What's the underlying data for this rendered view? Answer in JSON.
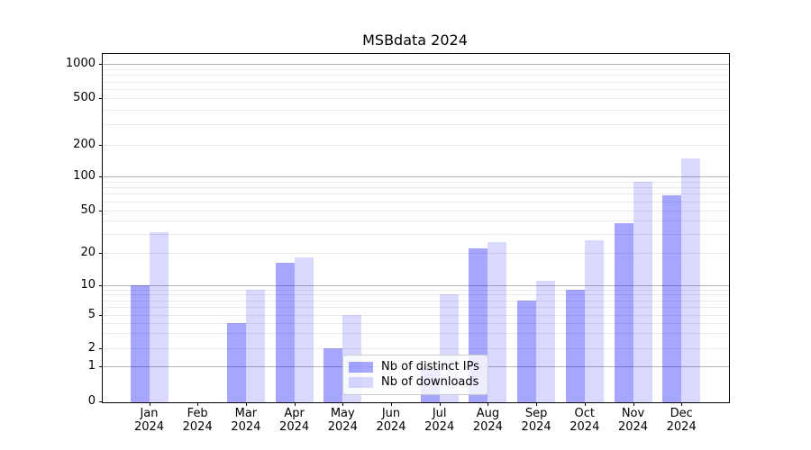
{
  "title": "MSBdata 2024",
  "colors": {
    "bar_base": "#0000ff",
    "ips_bar_rendered": "#a6a6ff",
    "downloads_bar_rendered": "#d9d9ff",
    "major_gridline": "#b4b4b4",
    "minor_gridline": "#eaeaea",
    "axis": "#000000",
    "legend_border": "#cccccc"
  },
  "legend": {
    "items": [
      {
        "label": "Nb of distinct IPs"
      },
      {
        "label": "Nb of downloads"
      }
    ]
  },
  "chart_data": {
    "type": "bar",
    "title": "MSBdata 2024",
    "categories": [
      "Jan 2024",
      "Feb 2024",
      "Mar 2024",
      "Apr 2024",
      "May 2024",
      "Jun 2024",
      "Jul 2024",
      "Aug 2024",
      "Sep 2024",
      "Oct 2024",
      "Nov 2024",
      "Dec 2024"
    ],
    "x_labels": [
      {
        "line1": "Jan",
        "line2": "2024"
      },
      {
        "line1": "Feb",
        "line2": "2024"
      },
      {
        "line1": "Mar",
        "line2": "2024"
      },
      {
        "line1": "Apr",
        "line2": "2024"
      },
      {
        "line1": "May",
        "line2": "2024"
      },
      {
        "line1": "Jun",
        "line2": "2024"
      },
      {
        "line1": "Jul",
        "line2": "2024"
      },
      {
        "line1": "Aug",
        "line2": "2024"
      },
      {
        "line1": "Sep",
        "line2": "2024"
      },
      {
        "line1": "Oct",
        "line2": "2024"
      },
      {
        "line1": "Nov",
        "line2": "2024"
      },
      {
        "line1": "Dec",
        "line2": "2024"
      }
    ],
    "series": [
      {
        "name": "Nb of distinct IPs",
        "alpha": 0.35,
        "values": [
          10,
          0,
          4,
          16,
          2,
          0,
          1,
          22,
          7,
          9,
          38,
          68
        ]
      },
      {
        "name": "Nb of downloads",
        "alpha": 0.15,
        "values": [
          31,
          0,
          9,
          18,
          5,
          0,
          8,
          25,
          11,
          26,
          90,
          147
        ]
      }
    ],
    "xlabel": "",
    "ylabel": "",
    "yscale": "pseudo-log",
    "yticks": [
      0,
      1,
      2,
      5,
      10,
      20,
      50,
      100,
      200,
      500,
      1000
    ],
    "ylim": [
      0,
      1300
    ],
    "grid": true,
    "legend_position": "inside-bottom-center"
  }
}
